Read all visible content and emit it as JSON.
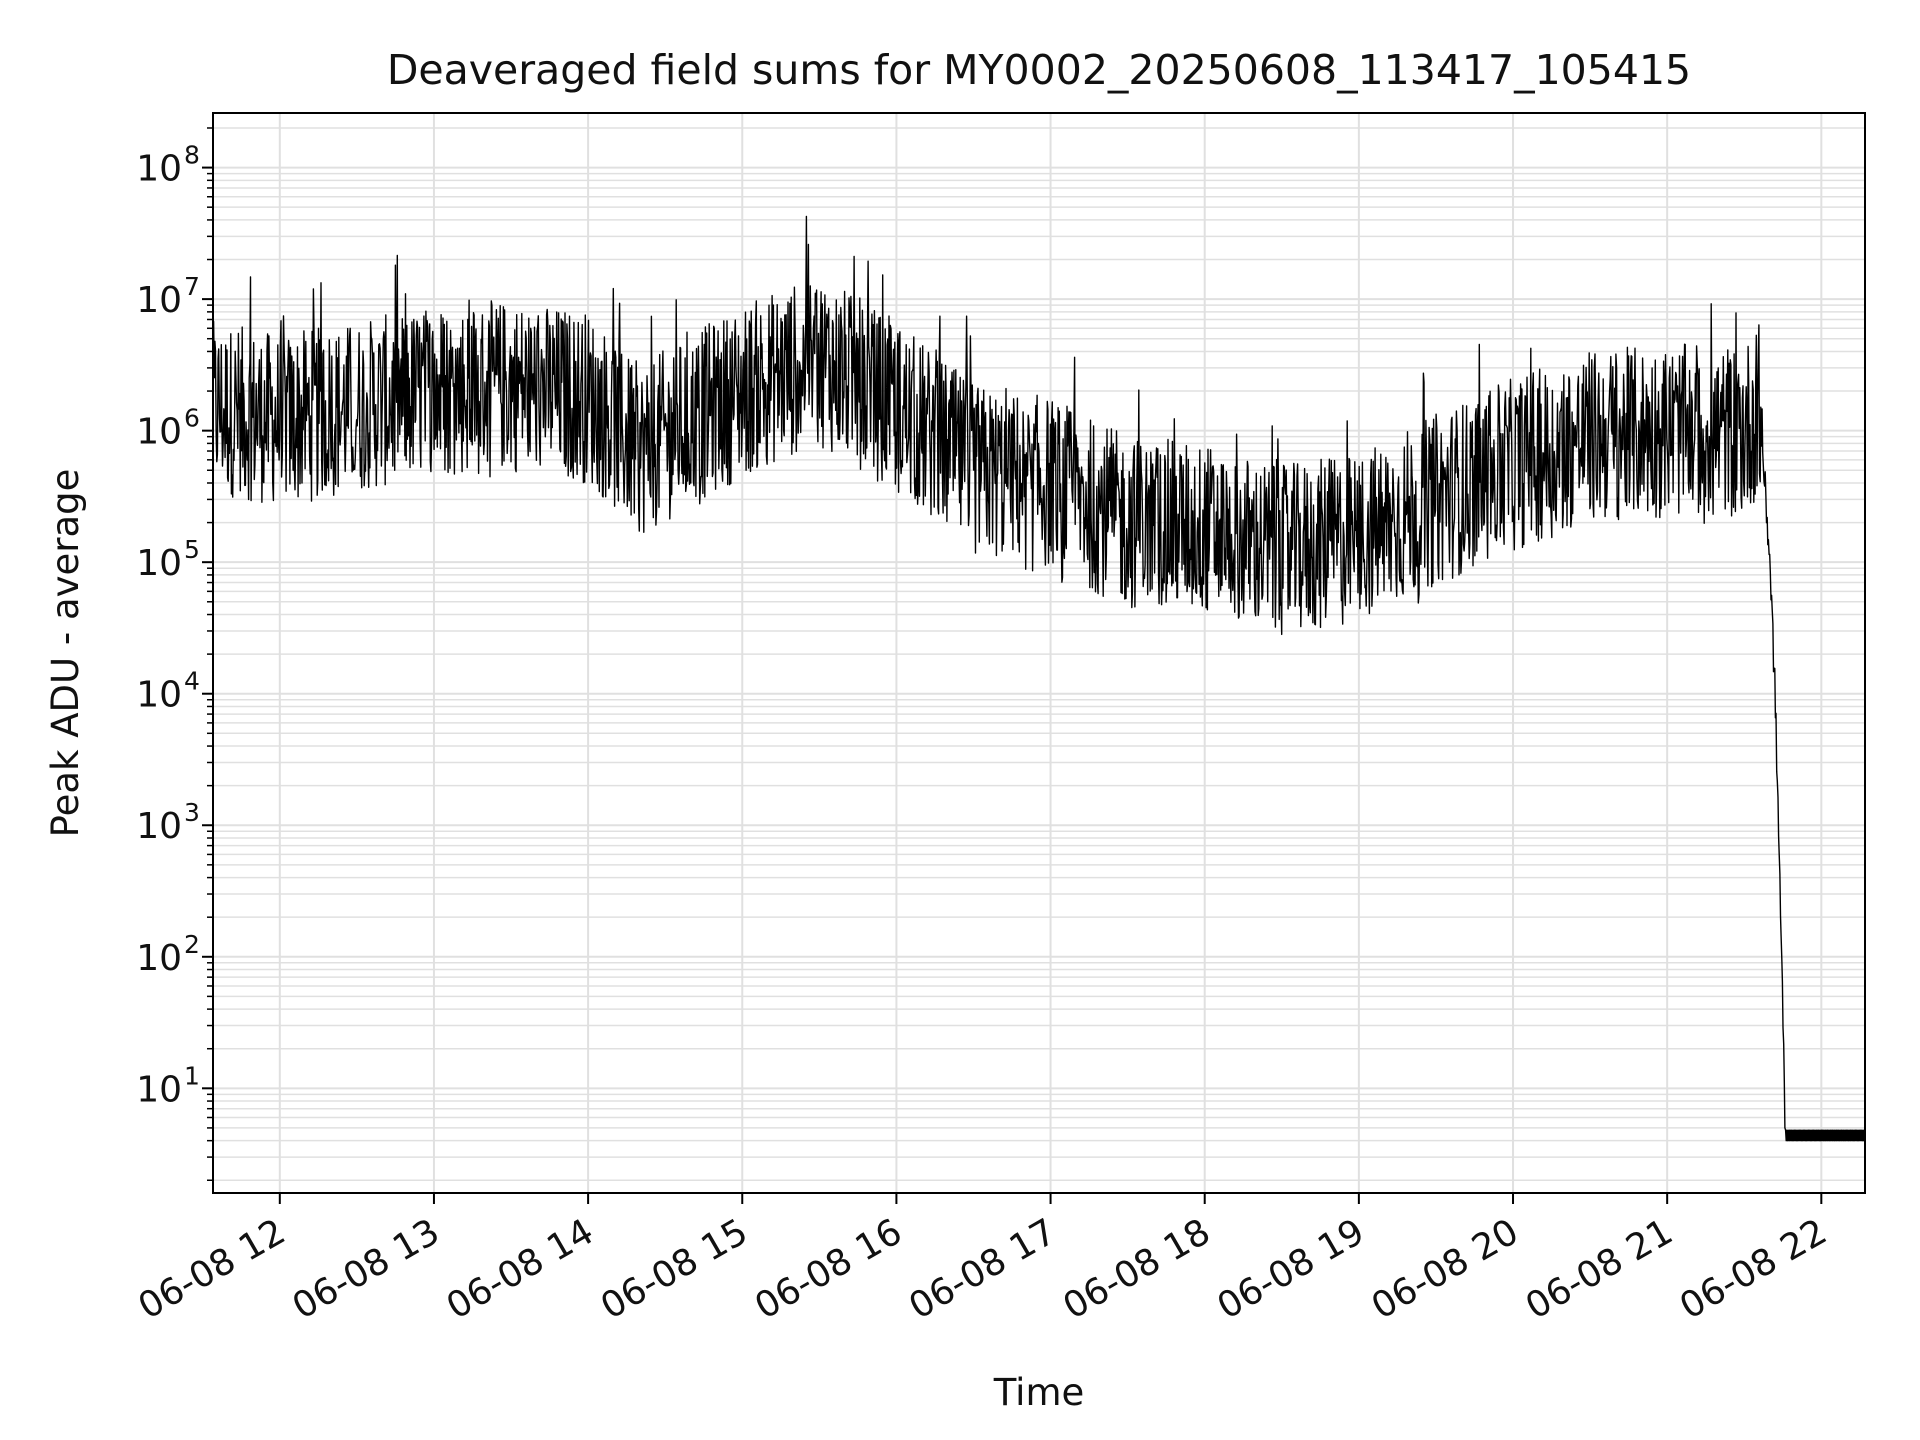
{
  "chart_data": {
    "type": "line",
    "title": "Deaveraged field sums for MY0002_20250608_113417_105415",
    "xlabel": "Time",
    "ylabel": "Peak ADU - average",
    "yscale": "log",
    "ylim": [
      1.6,
      260000000.0
    ],
    "xlim": [
      "2025-06-08 11:34",
      "2025-06-08 22:17"
    ],
    "x_ticks": [
      "06-08 12",
      "06-08 13",
      "06-08 14",
      "06-08 15",
      "06-08 16",
      "06-08 17",
      "06-08 18",
      "06-08 19",
      "06-08 20",
      "06-08 21",
      "06-08 22"
    ],
    "y_ticks": [
      {
        "base": "10",
        "exp": "1"
      },
      {
        "base": "10",
        "exp": "2"
      },
      {
        "base": "10",
        "exp": "3"
      },
      {
        "base": "10",
        "exp": "4"
      },
      {
        "base": "10",
        "exp": "5"
      },
      {
        "base": "10",
        "exp": "6"
      },
      {
        "base": "10",
        "exp": "7"
      },
      {
        "base": "10",
        "exp": "8"
      }
    ],
    "grid": true,
    "line_color": "#000000",
    "grid_color": "#e0e0e0",
    "series": [
      {
        "x": [
          "2025-06-08 11:34",
          "2025-06-08 12:00",
          "2025-06-08 12:30",
          "2025-06-08 13:00",
          "2025-06-08 13:30",
          "2025-06-08 14:00",
          "2025-06-08 14:20",
          "2025-06-08 14:40",
          "2025-06-08 15:00",
          "2025-06-08 15:30",
          "2025-06-08 16:00",
          "2025-06-08 16:30",
          "2025-06-08 17:00",
          "2025-06-08 17:30",
          "2025-06-08 18:00",
          "2025-06-08 18:30",
          "2025-06-08 19:00",
          "2025-06-08 19:30",
          "2025-06-08 20:00",
          "2025-06-08 20:30",
          "2025-06-08 21:00",
          "2025-06-08 21:30",
          "2025-06-08 21:36",
          "2025-06-08 21:40",
          "2025-06-08 21:42",
          "2025-06-08 21:44",
          "2025-06-08 21:46",
          "2025-06-08 22:17"
        ],
        "values": [
          1500000,
          1200000,
          1500000,
          2000000,
          2200000,
          1800000,
          700000,
          1200000,
          2000000,
          3500000,
          1500000,
          500000,
          400000,
          200000,
          180000,
          120000,
          150000,
          300000,
          550000,
          900000,
          1000000,
          1000000,
          1500000,
          100000,
          10000,
          300,
          4.5,
          4.5
        ]
      }
    ]
  }
}
